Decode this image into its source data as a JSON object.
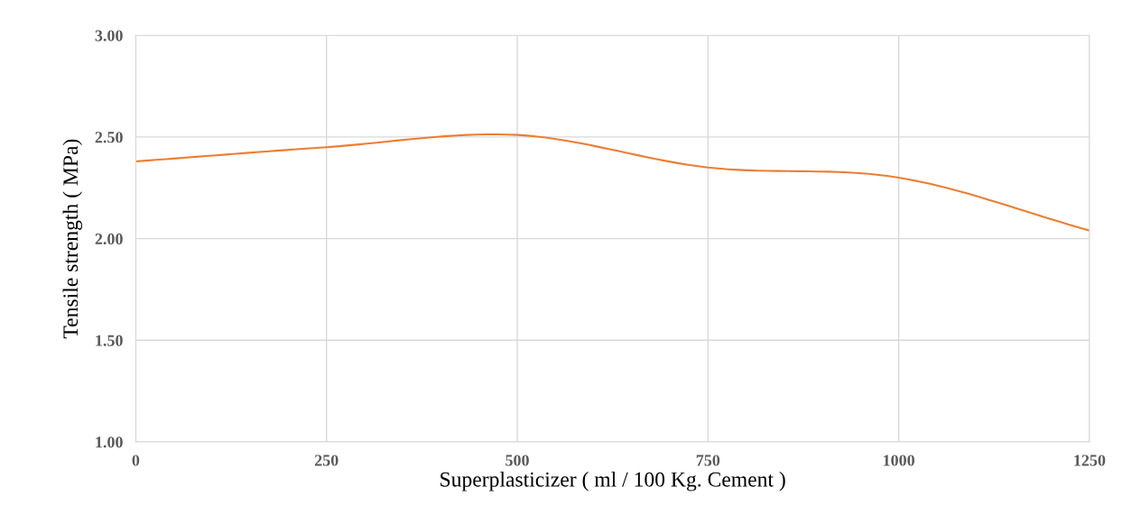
{
  "chart_data": {
    "type": "line",
    "xlabel": "Superplasticizer ( ml / 100 Kg. Cement )",
    "ylabel": "Tensile strength ( MPa)",
    "x": [
      0,
      250,
      500,
      750,
      1000,
      1250
    ],
    "series": [
      {
        "color": "#ed7d31",
        "values": [
          2.38,
          2.45,
          2.51,
          2.35,
          2.3,
          2.04
        ]
      }
    ],
    "xlim": [
      0,
      1250
    ],
    "xticks": [
      0,
      250,
      500,
      750,
      1000,
      1250
    ],
    "ylim": [
      1.0,
      3.0
    ],
    "yticks": [
      {
        "value": 1.0,
        "label": "1.00"
      },
      {
        "value": 1.5,
        "label": "1.50"
      },
      {
        "value": 2.0,
        "label": "2.00"
      },
      {
        "value": 2.5,
        "label": "2.50"
      },
      {
        "value": 3.0,
        "label": "3.00"
      }
    ],
    "grid": true,
    "marker": "none",
    "line_style": "solid"
  }
}
